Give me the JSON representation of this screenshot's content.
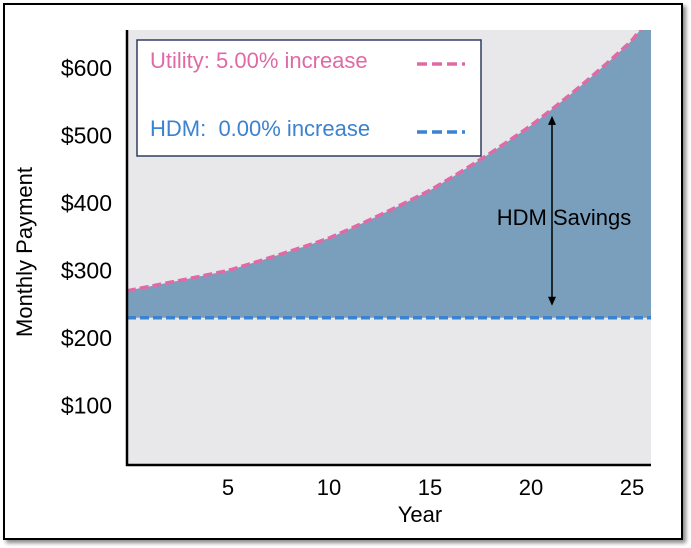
{
  "chart_data": {
    "type": "area",
    "title": "",
    "xlabel": "Year",
    "ylabel": "Monthly Payment",
    "xlim": [
      0,
      26
    ],
    "ylim": [
      12,
      655
    ],
    "x_ticks": [
      5,
      10,
      15,
      20,
      25
    ],
    "x_tick_labels": [
      "5",
      "10",
      "15",
      "20",
      "25"
    ],
    "y_ticks": [
      100,
      200,
      300,
      400,
      500,
      600
    ],
    "y_tick_labels": [
      "$100",
      "$200",
      "$300",
      "$400",
      "$500",
      "$600"
    ],
    "legend_placement": "top-left",
    "series": [
      {
        "name": "Utility: 5.00% increase",
        "style": "dashed",
        "color": "#e06aa6",
        "x": [
          0,
          5,
          10,
          15,
          20,
          25,
          26
        ],
        "values": [
          270,
          300,
          348,
          419,
          515,
          641,
          680
        ]
      },
      {
        "name": "HDM:  0.00% increase",
        "style": "dashed",
        "color": "#3b82d0",
        "x": [
          0,
          26
        ],
        "values": [
          230,
          230
        ]
      }
    ],
    "fill_color": "#7a9fbd",
    "background_color": "#e8e8ea",
    "annotation": {
      "text": "HDM Savings",
      "at_x": 21
    }
  }
}
